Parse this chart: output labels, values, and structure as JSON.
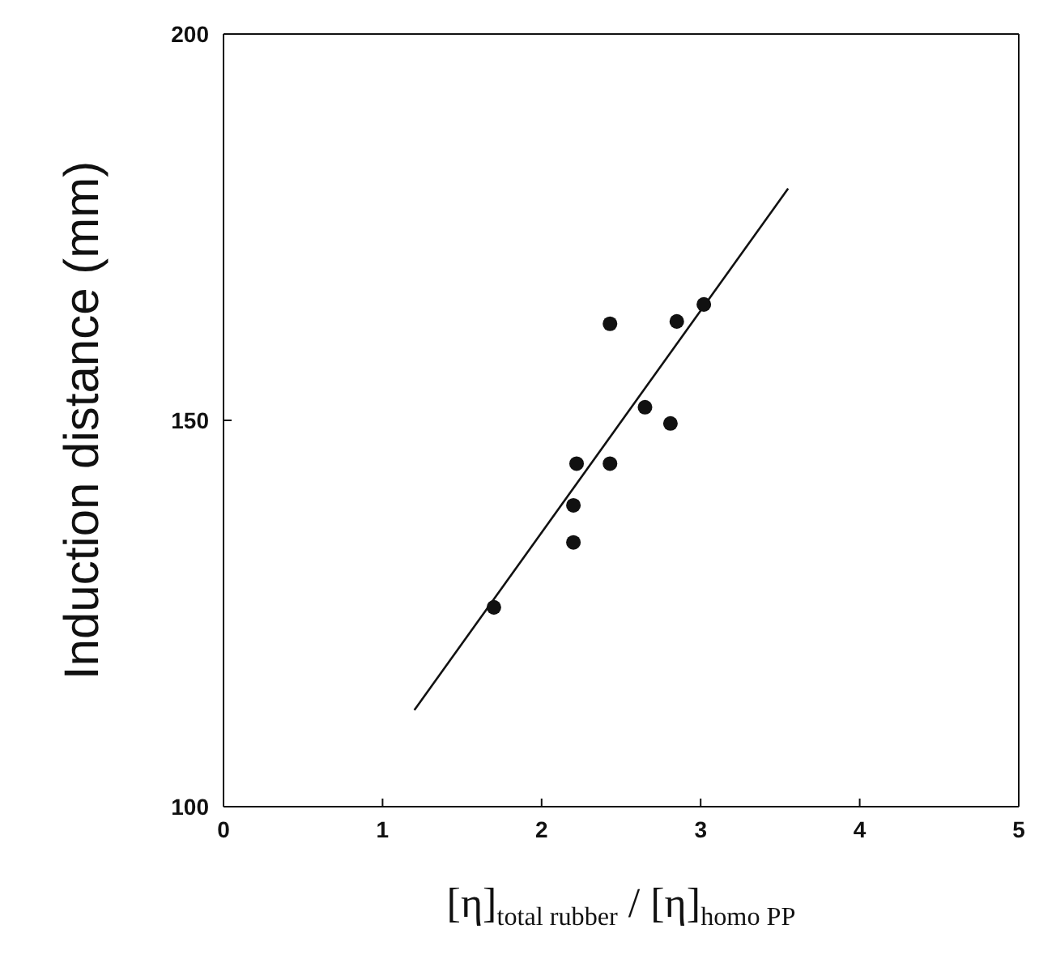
{
  "chart_data": {
    "type": "scatter",
    "xlabel": "[η]$_{total rubber}$ / [η]$_{homo PP}$",
    "ylabel": "Induction distance (mm)",
    "xlim": [
      0,
      5
    ],
    "xticks": [
      0,
      1,
      2,
      3,
      4,
      5
    ],
    "ylim": [
      100,
      200
    ],
    "yticks": [
      100,
      150,
      200
    ],
    "marker": "circle",
    "series": [
      {
        "color": "#111111",
        "x": [
          1.7,
          2.2,
          2.2,
          2.22,
          2.43,
          2.43,
          2.65,
          2.85,
          2.81,
          3.02
        ],
        "values": [
          125.8,
          134.2,
          139,
          144.4,
          144.4,
          162.5,
          151.7,
          162.8,
          149.6,
          165
        ]
      },
      {
        "type": "line",
        "color": "#111111",
        "line_style": "solid",
        "marker": "none",
        "x": [
          1.2,
          3.55
        ],
        "values": [
          112.5,
          180
        ]
      }
    ]
  }
}
